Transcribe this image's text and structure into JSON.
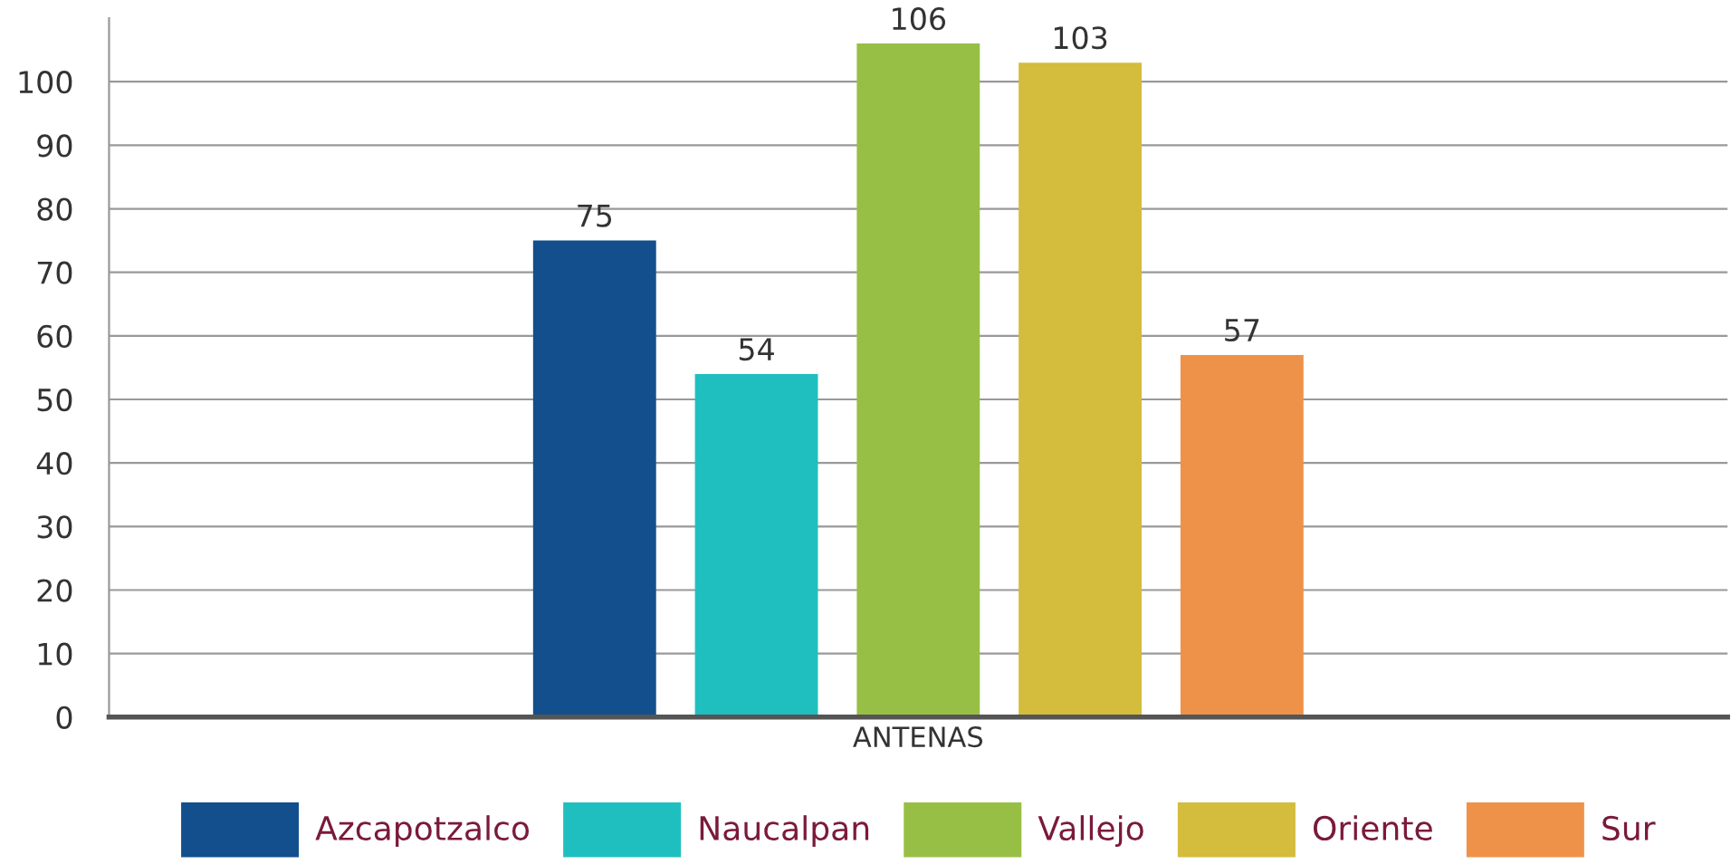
{
  "chart_data": {
    "type": "bar",
    "categories": [
      "ANTENAS"
    ],
    "series": [
      {
        "name": "Azcapotzalco",
        "color": "#134f8c",
        "values": [
          75
        ]
      },
      {
        "name": "Naucalpan",
        "color": "#20bfbf",
        "values": [
          54
        ]
      },
      {
        "name": "Vallejo",
        "color": "#98bf45",
        "values": [
          106
        ]
      },
      {
        "name": "Oriente",
        "color": "#d4bc3c",
        "values": [
          103
        ]
      },
      {
        "name": "Sur",
        "color": "#ee924a",
        "values": [
          57
        ]
      }
    ],
    "ylim": [
      0,
      110
    ],
    "yticks": [
      0,
      10,
      20,
      30,
      40,
      50,
      60,
      70,
      80,
      90,
      100
    ],
    "grid": "y",
    "legend": "bottom",
    "data_labels": true
  }
}
